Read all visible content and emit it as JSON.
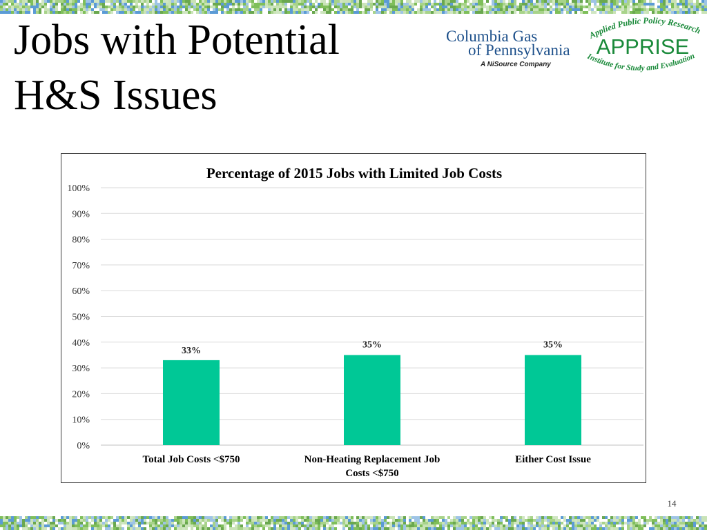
{
  "slide": {
    "title_line1": "Jobs with Potential",
    "title_line2": "H&S Issues",
    "page_number": "14"
  },
  "logos": {
    "columbia_line1": "Columbia Gas",
    "columbia_line2": "of Pennsylvania",
    "columbia_tagline": "A NiSource Company",
    "apprise_arc_top": "Applied Public Policy Research",
    "apprise_name": "APPRISE",
    "apprise_arc_bottom": "Institute for Study and Evaluation"
  },
  "colors": {
    "bar": "#00c896",
    "grid": "#d9d9d9",
    "columbia_blue": "#1c4f8a",
    "apprise_green": "#1a8a3a"
  },
  "chart_data": {
    "type": "bar",
    "title": "Percentage of 2015 Jobs with Limited Job Costs",
    "categories": [
      [
        "Total Job Costs <$750"
      ],
      [
        "Non-Heating Replacement Job",
        "Costs <$750"
      ],
      [
        "Either Cost Issue"
      ]
    ],
    "values": [
      33,
      35,
      35
    ],
    "data_labels": [
      "33%",
      "35%",
      "35%"
    ],
    "ylim": [
      0,
      100
    ],
    "yticks": [
      "0%",
      "10%",
      "20%",
      "30%",
      "40%",
      "50%",
      "60%",
      "70%",
      "80%",
      "90%",
      "100%"
    ],
    "grid": true,
    "legend": "none"
  }
}
